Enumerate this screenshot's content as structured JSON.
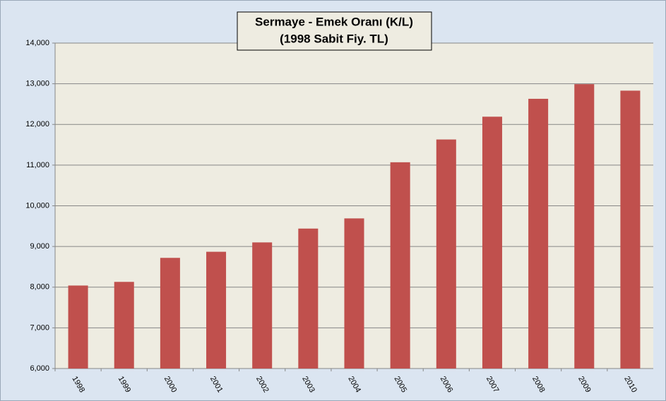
{
  "chart_data": {
    "type": "bar",
    "title": [
      "Sermaye - Emek Oranı (K/L)",
      "(1998 Sabit Fiy. TL)"
    ],
    "categories": [
      "1998",
      "1999",
      "2000",
      "2001",
      "2002",
      "2003",
      "2004",
      "2005",
      "2006",
      "2007",
      "2008",
      "2009",
      "2010"
    ],
    "values": [
      8040,
      8130,
      8720,
      8870,
      9100,
      9440,
      9690,
      11070,
      11630,
      12190,
      12630,
      12990,
      12830
    ],
    "color": "#c0504d",
    "ylim": [
      6000,
      14000
    ],
    "yticks": [
      {
        "value": 6000,
        "label": "6,000"
      },
      {
        "value": 7000,
        "label": "7,000"
      },
      {
        "value": 8000,
        "label": "8,000"
      },
      {
        "value": 9000,
        "label": "9,000"
      },
      {
        "value": 10000,
        "label": "10,000"
      },
      {
        "value": 11000,
        "label": "11,000"
      },
      {
        "value": 12000,
        "label": "12,000"
      },
      {
        "value": 13000,
        "label": "13,000"
      },
      {
        "value": 14000,
        "label": "14,000"
      }
    ],
    "grid": true
  }
}
